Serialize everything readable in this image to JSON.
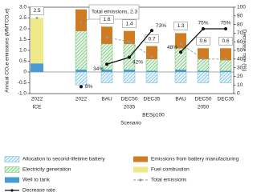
{
  "chart_data": {
    "type": "stacked-bar-line",
    "categories": [
      "2022",
      "2022",
      "BAU",
      "DEC50",
      "DEC35",
      "BAU",
      "DEC50",
      "DEC35"
    ],
    "group_labels": [
      "ICE",
      "2035",
      "2050"
    ],
    "scenario_label": "BESp100",
    "xlabel": "Scenario",
    "ylabel": "Annual CO₂e emissions (MMTCO₂e)",
    "y2label": "Decrease rate (%)",
    "ylim": [
      -1,
      3
    ],
    "yticks": [
      {
        "value": -1,
        "label": "-1.0"
      },
      -0.5,
      0,
      0.5,
      {
        "value": 1,
        "label": "1.0"
      },
      1.5,
      {
        "value": 2,
        "label": "2.0"
      },
      2.5,
      {
        "value": 3,
        "label": "3.0"
      }
    ],
    "y2lim": [
      0,
      100
    ],
    "y2ticks": [
      0,
      10,
      20,
      30,
      40,
      50,
      60,
      70,
      80,
      90,
      100
    ],
    "series": [
      {
        "name": "Allocation to second-lifetime battery",
        "kind": "bar",
        "hatch": true,
        "color": "#4aa8d8",
        "values": [
          null,
          -0.6,
          -0.5,
          -0.5,
          -0.5,
          -0.5,
          -0.5,
          -0.5
        ]
      },
      {
        "name": "Well to tank",
        "kind": "bar",
        "hatch": false,
        "color": "#4a9ad6",
        "values": [
          0.4,
          0.1,
          0.1,
          0.1,
          0.05,
          0.1,
          0.05,
          0.05
        ]
      },
      {
        "name": "Electricity generation",
        "kind": "bar",
        "hatch": true,
        "color": "#4cae4c",
        "values": [
          null,
          1.8,
          1.2,
          1.2,
          0.55,
          1.0,
          0.55,
          0.5
        ]
      },
      {
        "name": "Emissions from battery manufacturing",
        "kind": "bar",
        "hatch": false,
        "color": "#d07a22",
        "values": [
          null,
          1.0,
          0.8,
          0.6,
          0.6,
          0.7,
          0.5,
          0.55
        ]
      },
      {
        "name": "Fuel combustion",
        "kind": "bar",
        "hatch": false,
        "color": "#eeea8a",
        "values": [
          2.1,
          null,
          null,
          null,
          null,
          null,
          null,
          null
        ]
      },
      {
        "name": "Total emissions",
        "kind": "line",
        "dashed": true,
        "color": "#999999",
        "values": [
          2.5,
          2.3,
          1.6,
          1.4,
          0.7,
          1.3,
          0.6,
          0.6
        ],
        "value_labels": [
          "2.5",
          "Total emissions, 2.3",
          "1.6",
          "1.4",
          "0.7",
          "1.3",
          "0.6",
          "0.6"
        ]
      },
      {
        "name": "Decrease rate",
        "kind": "line",
        "axis": "y2",
        "dashed": false,
        "color": "#111111",
        "values": [
          null,
          8,
          34,
          42,
          73,
          48,
          75,
          75
        ],
        "value_labels": [
          null,
          "8%",
          "34%",
          "42%",
          "73%",
          "48%",
          "75%",
          "75%"
        ]
      }
    ]
  }
}
